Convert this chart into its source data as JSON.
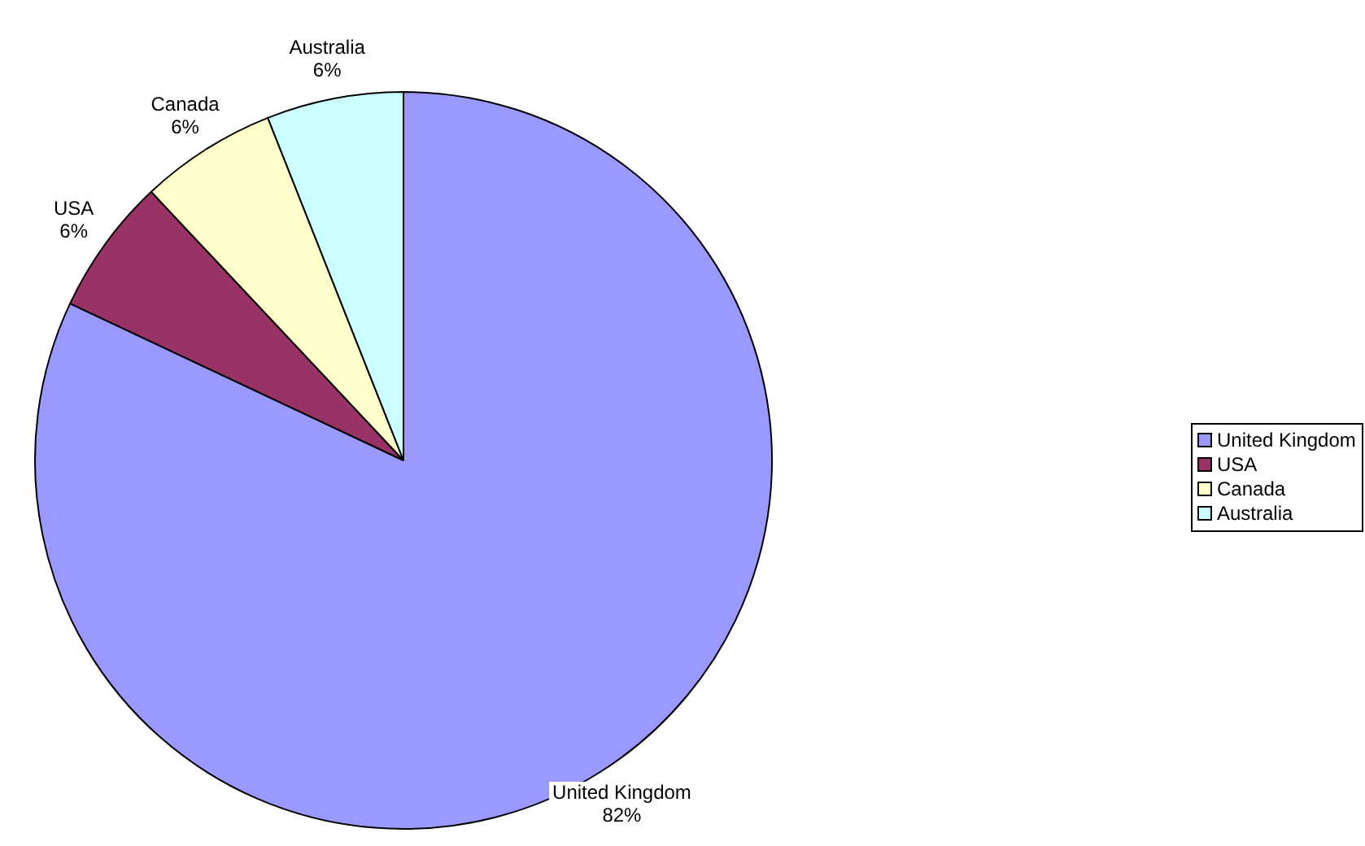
{
  "chart_data": {
    "type": "pie",
    "categories": [
      "United Kingdom",
      "USA",
      "Canada",
      "Australia"
    ],
    "values": [
      82,
      6,
      6,
      6
    ],
    "colors": [
      "#9999ff",
      "#993366",
      "#ffffcc",
      "#ccffff"
    ],
    "value_labels": [
      "82%",
      "6%",
      "6%",
      "6%"
    ],
    "legend": "right"
  }
}
